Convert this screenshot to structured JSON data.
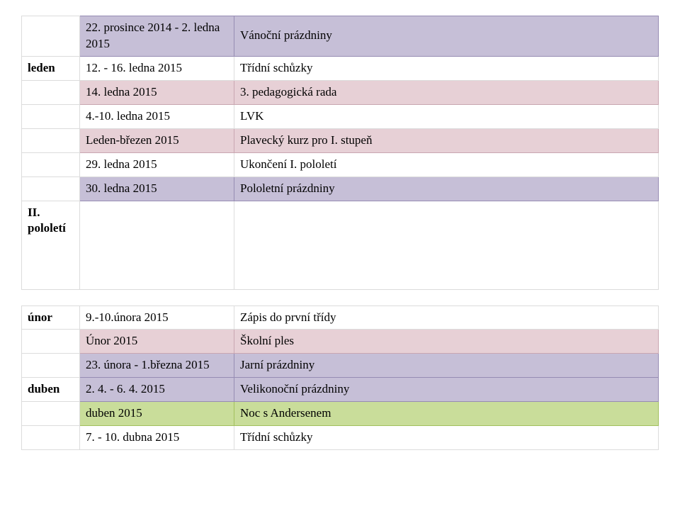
{
  "rows": [
    {
      "band": "purple",
      "month": "",
      "date": "22. prosince 2014 - 2. ledna 2015",
      "event": "Vánoční prázdniny"
    },
    {
      "band": "blank",
      "month": "leden",
      "date": "12. - 16. ledna 2015",
      "event": "Třídní schůzky"
    },
    {
      "band": "pink",
      "month": "",
      "date": "14. ledna 2015",
      "event": "3. pedagogická rada"
    },
    {
      "band": "blank",
      "month": "",
      "date": "4.-10. ledna 2015",
      "event": "LVK"
    },
    {
      "band": "pink",
      "month": "",
      "date": "Leden-březen 2015",
      "event": "Plavecký kurz pro I. stupeň"
    },
    {
      "band": "blank",
      "month": "",
      "date": "29. ledna 2015",
      "event": "Ukončení I. pololetí"
    },
    {
      "band": "purple",
      "month": "",
      "date": "30. ledna 2015",
      "event": "Pololetní prázdniny"
    },
    {
      "band": "blank",
      "month": "II. pololetí",
      "date": "",
      "event": "",
      "tall": true
    },
    {
      "band": "spacer"
    },
    {
      "band": "blank",
      "month": "únor",
      "date": "9.-10.února 2015",
      "event": "Zápis do první třídy"
    },
    {
      "band": "pink",
      "month": "",
      "date": "Únor 2015",
      "event": "Školní ples"
    },
    {
      "band": "purple",
      "month": "",
      "date": "23. února - 1.března 2015",
      "event": "Jarní prázdniny"
    },
    {
      "band": "purple",
      "month": "duben",
      "date": "2. 4. - 6. 4. 2015",
      "event": "Velikonoční prázdniny"
    },
    {
      "band": "green",
      "month": "",
      "date": "duben 2015",
      "event": "Noc s Andersenem"
    },
    {
      "band": "blank",
      "month": "",
      "date": "7. - 10. dubna 2015",
      "event": "Třídní schůzky"
    }
  ]
}
